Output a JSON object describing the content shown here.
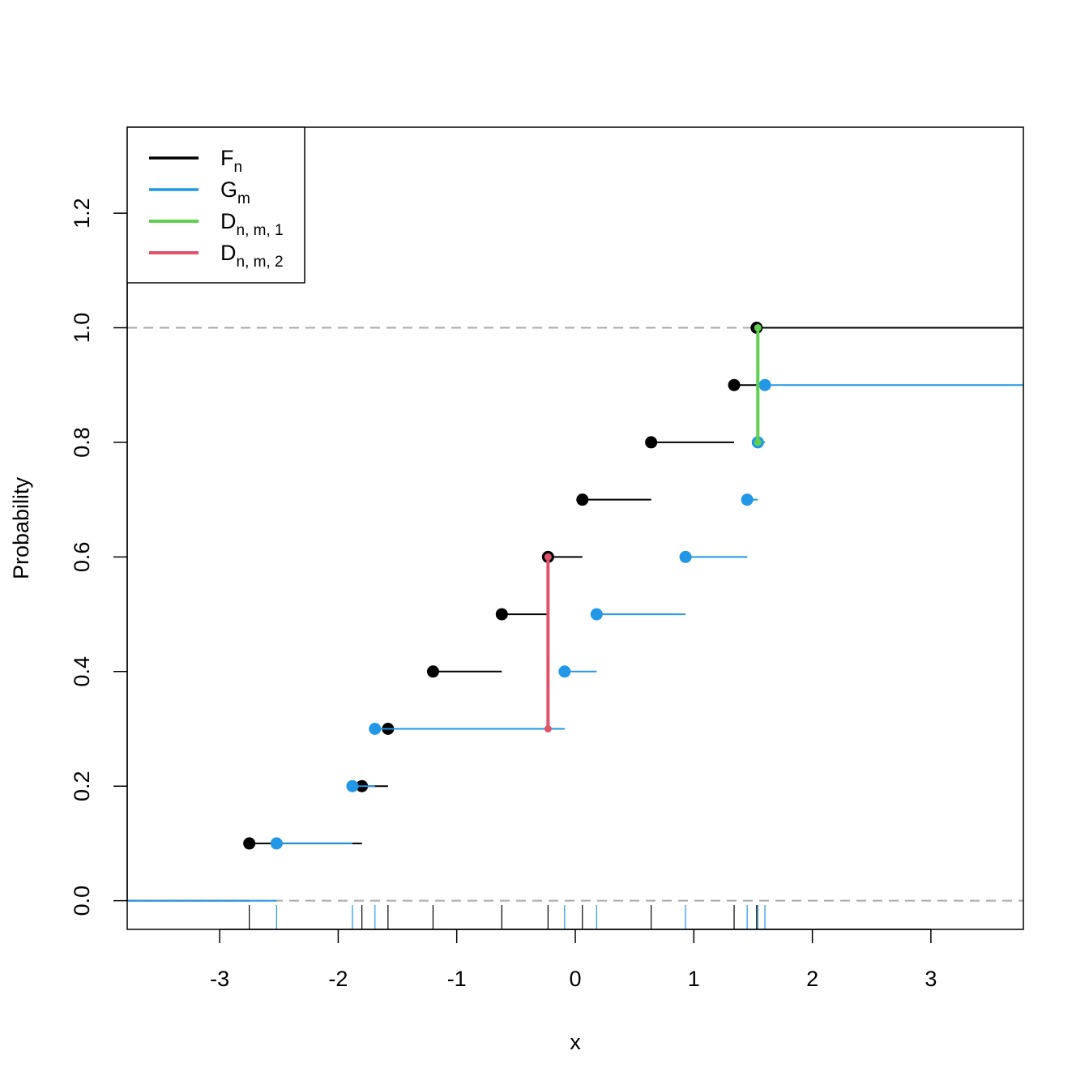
{
  "chart_data": {
    "type": "step",
    "xlabel": "x",
    "ylabel": "Probability",
    "xlim": [
      -3.78,
      3.78
    ],
    "ylim": [
      -0.05,
      1.35
    ],
    "x_ticks": [
      -3,
      -2,
      -1,
      0,
      1,
      2,
      3
    ],
    "x_tick_labels": [
      "-3",
      "-2",
      "-1",
      "0",
      "1",
      "2",
      "3"
    ],
    "y_ticks": [
      0.0,
      0.2,
      0.4,
      0.6,
      0.8,
      1.0,
      1.2
    ],
    "y_tick_labels": [
      "0.0",
      "0.2",
      "0.4",
      "0.6",
      "0.8",
      "1.0",
      "1.2"
    ],
    "reference_lines": [
      0,
      1
    ],
    "legend_position": "top-left",
    "series": [
      {
        "name": "F",
        "subscript": "n",
        "color": "#000000",
        "x": [
          -2.75,
          -1.8,
          -1.58,
          -1.2,
          -0.62,
          -0.23,
          0.06,
          0.64,
          1.34,
          1.53
        ]
      },
      {
        "name": "G",
        "subscript": "m",
        "color": "#2297E6",
        "x": [
          -2.52,
          -1.88,
          -1.69,
          -0.09,
          0.18,
          0.93,
          1.45,
          1.54,
          1.6
        ]
      }
    ],
    "g_values": [
      0.1,
      0.2,
      0.3,
      0.4,
      0.5,
      0.6,
      0.7,
      0.8,
      0.9
    ],
    "statistics": [
      {
        "name": "D",
        "subscript": "n, m, 1",
        "color": "#61D04F",
        "x": 1.54,
        "y_from": 0.8,
        "y_to": 1.0
      },
      {
        "name": "D",
        "subscript": "n, m, 2",
        "color": "#DF536B",
        "x": -0.23,
        "y_from": 0.3,
        "y_to": 0.6
      }
    ]
  }
}
